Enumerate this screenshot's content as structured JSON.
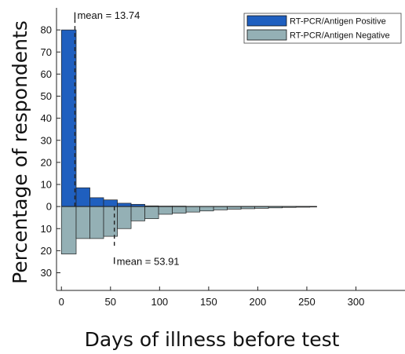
{
  "chart_data": {
    "type": "bar",
    "title": "",
    "xlabel": "Days of illness before test",
    "ylabel": "Percentage of respondents",
    "xlim": [
      -5,
      350
    ],
    "ylim": [
      -38,
      90
    ],
    "x_ticks": [
      0,
      50,
      100,
      150,
      200,
      250,
      300
    ],
    "x_tick_labels": [
      "0",
      "50",
      "100",
      "150",
      "200",
      "250",
      "300"
    ],
    "y_ticks": [
      -30,
      -20,
      -10,
      0,
      10,
      20,
      30,
      40,
      50,
      60,
      70,
      80
    ],
    "y_tick_labels": [
      "30",
      "20",
      "10",
      "0",
      "10",
      "20",
      "30",
      "40",
      "50",
      "60",
      "70",
      "80"
    ],
    "bin_edges": [
      0,
      15,
      29,
      43,
      57,
      71,
      85,
      99,
      113,
      127,
      141,
      155,
      169,
      183,
      197,
      211,
      225,
      239,
      253,
      260
    ],
    "series": [
      {
        "name": "RT-PCR/Antigen Positive",
        "color": "#1f5fbf",
        "direction": "up",
        "values": [
          80,
          8.5,
          4,
          3,
          1.5,
          1,
          0.3,
          0.2,
          0.2,
          0.1,
          0.1,
          0.1,
          0.1,
          0.1,
          0.1,
          0.05,
          0.05,
          0.05,
          0.05
        ],
        "mean": 13.74,
        "mean_label": "mean = 13.74"
      },
      {
        "name": "RT-PCR/Antigen Negative",
        "color": "#94b0b5",
        "direction": "down",
        "values": [
          21.5,
          14.5,
          14.5,
          13.5,
          10,
          6.5,
          5.5,
          3.5,
          3,
          2.5,
          2,
          1.5,
          1.2,
          1,
          0.8,
          0.6,
          0.4,
          0.3,
          0.2
        ],
        "mean": 53.91,
        "mean_label": "mean = 53.91"
      }
    ],
    "legend": {
      "position": "top-right"
    },
    "grid": false
  }
}
